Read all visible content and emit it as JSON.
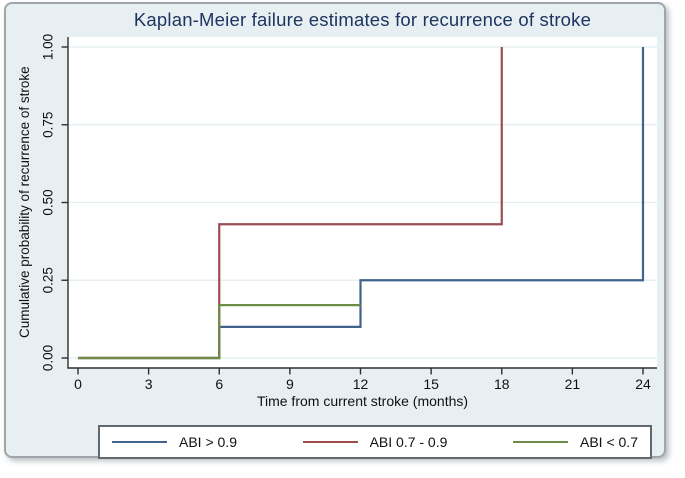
{
  "window": {
    "background": "#ffffff",
    "panel_background": "#e8eff2",
    "panel_border": "#9fa5aa"
  },
  "chart_data": {
    "type": "line",
    "subtype": "kaplan-meier step (failure estimates)",
    "title": "Kaplan-Meier failure estimates for recurrence of stroke",
    "title_color": "#1e3461",
    "xlabel": "Time from current stroke (months)",
    "ylabel": "Cumulative probability of recurrence of stroke",
    "xlim": [
      0,
      24
    ],
    "ylim": [
      0,
      1
    ],
    "x_ticks": [
      0,
      3,
      6,
      9,
      12,
      15,
      18,
      21,
      24
    ],
    "y_tick_values": [
      0,
      0.25,
      0.5,
      0.75,
      1
    ],
    "y_tick_labels": [
      "0.00",
      "0.25",
      "0.50",
      "0.75",
      "1.00"
    ],
    "grid": true,
    "gridline_color": "#e2edf0",
    "axis_color": "#2f2f2f",
    "plot_background": "#ffffff",
    "legend_position": "bottom",
    "series": [
      {
        "name": "ABI > 0.9",
        "color": "#41628c",
        "steps": [
          [
            0,
            0
          ],
          [
            6,
            0.1
          ],
          [
            12,
            0.25
          ],
          [
            24,
            1.0
          ]
        ],
        "end_x": 24
      },
      {
        "name": "ABI 0.7 - 0.9",
        "color": "#9d4c52",
        "steps": [
          [
            0,
            0
          ],
          [
            6,
            0.43
          ],
          [
            18,
            1.0
          ]
        ],
        "end_x": 18
      },
      {
        "name": "ABI < 0.7",
        "color": "#6d8c46",
        "steps": [
          [
            0,
            0
          ],
          [
            6,
            0.17
          ]
        ],
        "end_x": 12
      }
    ]
  }
}
